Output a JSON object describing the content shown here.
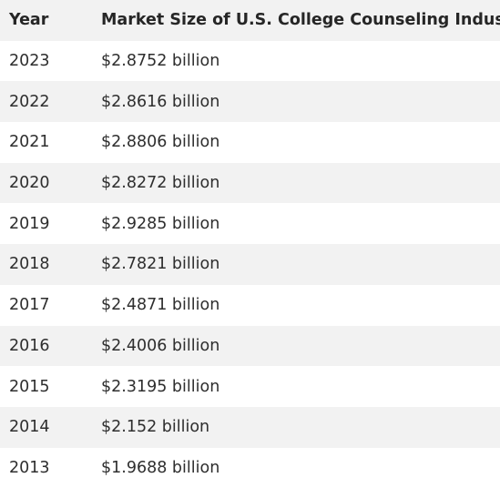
{
  "table": {
    "headers": {
      "year": "Year",
      "size": "Market Size of U.S. College Counseling Industry"
    },
    "rows": [
      {
        "year": "2023",
        "size": "$2.8752 billion"
      },
      {
        "year": "2022",
        "size": "$2.8616 billion"
      },
      {
        "year": "2021",
        "size": "$2.8806 billion"
      },
      {
        "year": "2020",
        "size": "$2.8272 billion"
      },
      {
        "year": "2019",
        "size": "$2.9285 billion"
      },
      {
        "year": "2018",
        "size": "$2.7821 billion"
      },
      {
        "year": "2017",
        "size": "$2.4871 billion"
      },
      {
        "year": "2016",
        "size": "$2.4006 billion"
      },
      {
        "year": "2015",
        "size": "$2.3195 billion"
      },
      {
        "year": "2014",
        "size": "$2.152 billion"
      },
      {
        "year": "2013",
        "size": "$1.9688 billion"
      }
    ]
  },
  "colors": {
    "header_bg": "#f2f2f2",
    "stripe_bg": "#f2f2f2",
    "row_bg": "#ffffff",
    "text": "#2e2e2e"
  }
}
